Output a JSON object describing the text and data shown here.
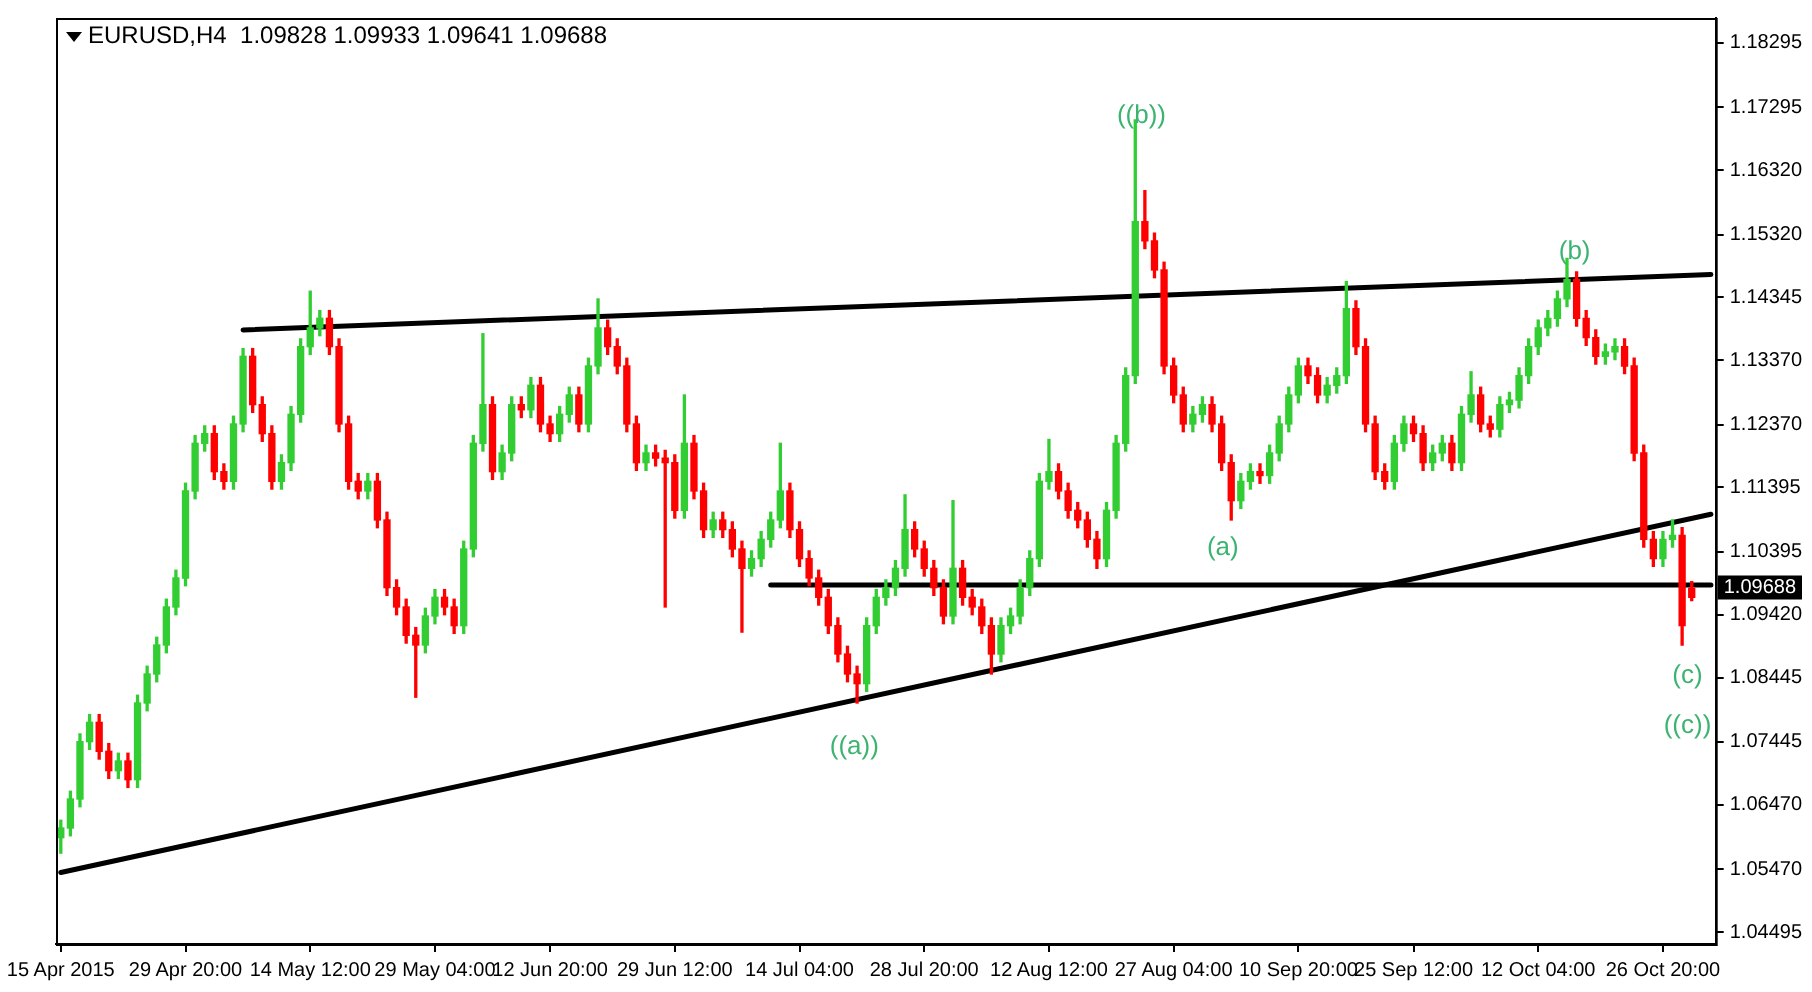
{
  "chart_data": {
    "type": "candlestick",
    "title": "EURUSD,H4  1.09828 1.09933 1.09641 1.09688",
    "categories": [
      "15 Apr 2015",
      null,
      null,
      null,
      null,
      null,
      null,
      null,
      null,
      null,
      null,
      null,
      null,
      "29 Apr 20:00",
      null,
      null,
      null,
      null,
      null,
      null,
      null,
      null,
      null,
      null,
      null,
      null,
      "14 May 12:00",
      null,
      null,
      null,
      null,
      null,
      null,
      null,
      null,
      null,
      null,
      null,
      null,
      "29 May 04:00",
      null,
      null,
      null,
      null,
      null,
      null,
      null,
      null,
      null,
      null,
      null,
      "12 Jun 20:00",
      null,
      null,
      null,
      null,
      null,
      null,
      null,
      null,
      null,
      null,
      null,
      null,
      "29 Jun 12:00",
      null,
      null,
      null,
      null,
      null,
      null,
      null,
      null,
      null,
      null,
      null,
      null,
      "14 Jul 04:00",
      null,
      null,
      null,
      null,
      null,
      null,
      null,
      null,
      null,
      null,
      null,
      null,
      "28 Jul 20:00",
      null,
      null,
      null,
      null,
      null,
      null,
      null,
      null,
      null,
      null,
      null,
      null,
      "12 Aug 12:00",
      null,
      null,
      null,
      null,
      null,
      null,
      null,
      null,
      null,
      null,
      null,
      null,
      "27 Aug 04:00",
      null,
      null,
      null,
      null,
      null,
      null,
      null,
      null,
      null,
      null,
      null,
      null,
      "10 Sep 20:00",
      null,
      null,
      null,
      null,
      null,
      null,
      null,
      null,
      null,
      null,
      null,
      "25 Sep 12:00",
      null,
      null,
      null,
      null,
      null,
      null,
      null,
      null,
      null,
      null,
      null,
      null,
      "12 Oct 04:00",
      null,
      null,
      null,
      null,
      null,
      null,
      null,
      null,
      null,
      null,
      null,
      null,
      "26 Oct 20:00",
      null,
      null,
      null,
      null,
      null
    ],
    "ohlc": [
      [
        1.0596,
        1.0623,
        1.0572,
        1.0611
      ],
      [
        1.0611,
        1.0668,
        1.0599,
        1.0656
      ],
      [
        1.0656,
        1.0757,
        1.0644,
        1.0745
      ],
      [
        1.0745,
        1.0787,
        1.0733,
        1.0775
      ],
      [
        1.0775,
        1.0787,
        1.0718,
        1.073
      ],
      [
        1.073,
        1.0742,
        1.0688,
        1.07
      ],
      [
        1.07,
        1.0727,
        1.0688,
        1.0715
      ],
      [
        1.0715,
        1.0727,
        1.0674,
        1.0686
      ],
      [
        1.0686,
        1.0817,
        1.0674,
        1.0805
      ],
      [
        1.0805,
        1.0862,
        1.0793,
        1.085
      ],
      [
        1.085,
        1.0907,
        1.0838,
        1.0895
      ],
      [
        1.0895,
        1.0966,
        1.0883,
        1.0954
      ],
      [
        1.0954,
        1.1011,
        1.0942,
        1.0999
      ],
      [
        1.0999,
        1.1146,
        1.0987,
        1.1134
      ],
      [
        1.1134,
        1.122,
        1.1122,
        1.1208
      ],
      [
        1.1208,
        1.1235,
        1.1196,
        1.1223
      ],
      [
        1.1223,
        1.1235,
        1.1152,
        1.1164
      ],
      [
        1.1164,
        1.1176,
        1.1137,
        1.1149
      ],
      [
        1.1149,
        1.125,
        1.1137,
        1.1238
      ],
      [
        1.1238,
        1.1355,
        1.1226,
        1.1343
      ],
      [
        1.1343,
        1.1355,
        1.1256,
        1.1268
      ],
      [
        1.1268,
        1.128,
        1.1211,
        1.1223
      ],
      [
        1.1223,
        1.1235,
        1.1137,
        1.1149
      ],
      [
        1.1149,
        1.119,
        1.1137,
        1.1178
      ],
      [
        1.1178,
        1.1265,
        1.1166,
        1.1253
      ],
      [
        1.1253,
        1.137,
        1.1241,
        1.1358
      ],
      [
        1.1358,
        1.1444,
        1.1346,
        1.1387
      ],
      [
        1.1387,
        1.1414,
        1.1375,
        1.1402
      ],
      [
        1.1402,
        1.1414,
        1.1346,
        1.1358
      ],
      [
        1.1358,
        1.137,
        1.1226,
        1.1238
      ],
      [
        1.1238,
        1.125,
        1.1137,
        1.1149
      ],
      [
        1.1149,
        1.1161,
        1.1122,
        1.1134
      ],
      [
        1.1134,
        1.1161,
        1.1122,
        1.1149
      ],
      [
        1.1149,
        1.1161,
        1.1077,
        1.1089
      ],
      [
        1.1089,
        1.1101,
        1.0972,
        1.0984
      ],
      [
        1.0984,
        1.0996,
        1.0942,
        1.0954
      ],
      [
        1.0954,
        1.0966,
        1.0898,
        1.091
      ],
      [
        1.091,
        1.0922,
        1.0814,
        1.0895
      ],
      [
        1.0895,
        1.0952,
        1.0883,
        1.094
      ],
      [
        1.094,
        1.0981,
        1.0928,
        1.0969
      ],
      [
        1.0969,
        1.0981,
        1.0942,
        1.0954
      ],
      [
        1.0954,
        1.0966,
        1.0913,
        1.0925
      ],
      [
        1.0925,
        1.1056,
        1.0913,
        1.1044
      ],
      [
        1.1044,
        1.122,
        1.1032,
        1.1208
      ],
      [
        1.1208,
        1.1378,
        1.1196,
        1.1268
      ],
      [
        1.1268,
        1.128,
        1.1152,
        1.1164
      ],
      [
        1.1164,
        1.1205,
        1.1152,
        1.1193
      ],
      [
        1.1193,
        1.128,
        1.1181,
        1.1268
      ],
      [
        1.1268,
        1.128,
        1.1248,
        1.126
      ],
      [
        1.126,
        1.131,
        1.1248,
        1.1298
      ],
      [
        1.1298,
        1.131,
        1.1226,
        1.1238
      ],
      [
        1.1238,
        1.125,
        1.1211,
        1.1223
      ],
      [
        1.1223,
        1.1265,
        1.1211,
        1.1253
      ],
      [
        1.1253,
        1.1295,
        1.1241,
        1.1283
      ],
      [
        1.1283,
        1.1295,
        1.1226,
        1.1238
      ],
      [
        1.1238,
        1.134,
        1.1226,
        1.1328
      ],
      [
        1.1328,
        1.1432,
        1.1316,
        1.1387
      ],
      [
        1.1387,
        1.1399,
        1.1346,
        1.1358
      ],
      [
        1.1358,
        1.137,
        1.1316,
        1.1328
      ],
      [
        1.1328,
        1.134,
        1.1226,
        1.1238
      ],
      [
        1.1238,
        1.125,
        1.1166,
        1.1178
      ],
      [
        1.1178,
        1.1205,
        1.1166,
        1.1193
      ],
      [
        1.1193,
        1.1205,
        1.1173,
        1.1185
      ],
      [
        1.1185,
        1.1197,
        1.0954,
        1.1178
      ],
      [
        1.1178,
        1.119,
        1.1092,
        1.1104
      ],
      [
        1.1104,
        1.1283,
        1.1092,
        1.1208
      ],
      [
        1.1208,
        1.122,
        1.1122,
        1.1134
      ],
      [
        1.1134,
        1.1146,
        1.1062,
        1.1074
      ],
      [
        1.1074,
        1.1101,
        1.1062,
        1.1089
      ],
      [
        1.1089,
        1.1101,
        1.1062,
        1.1074
      ],
      [
        1.1074,
        1.1086,
        1.1032,
        1.1044
      ],
      [
        1.1044,
        1.1056,
        1.0915,
        1.1014
      ],
      [
        1.1014,
        1.1041,
        1.1002,
        1.1029
      ],
      [
        1.1029,
        1.1071,
        1.1017,
        1.1059
      ],
      [
        1.1059,
        1.1101,
        1.1047,
        1.1089
      ],
      [
        1.1089,
        1.1208,
        1.1077,
        1.1134
      ],
      [
        1.1134,
        1.1146,
        1.1062,
        1.1074
      ],
      [
        1.1074,
        1.1086,
        1.1017,
        1.1029
      ],
      [
        1.1029,
        1.1041,
        1.0987,
        1.0999
      ],
      [
        1.0999,
        1.1011,
        1.0957,
        1.0969
      ],
      [
        1.0969,
        1.0981,
        1.0913,
        1.0925
      ],
      [
        1.0925,
        1.0937,
        1.0869,
        1.0881
      ],
      [
        1.0881,
        1.0893,
        1.0838,
        1.085
      ],
      [
        1.085,
        1.0862,
        1.0805,
        1.0835
      ],
      [
        1.0835,
        1.0937,
        1.0823,
        1.0925
      ],
      [
        1.0925,
        1.0981,
        1.0913,
        1.0969
      ],
      [
        1.0969,
        1.0996,
        1.0957,
        1.0984
      ],
      [
        1.0984,
        1.1026,
        1.0972,
        1.1014
      ],
      [
        1.1014,
        1.1128,
        1.1002,
        1.1074
      ],
      [
        1.1074,
        1.1086,
        1.1032,
        1.1044
      ],
      [
        1.1044,
        1.1056,
        1.1002,
        1.1014
      ],
      [
        1.1014,
        1.1026,
        1.0972,
        1.0984
      ],
      [
        1.0984,
        1.0996,
        1.0928,
        1.094
      ],
      [
        1.094,
        1.1119,
        1.0928,
        1.1014
      ],
      [
        1.1014,
        1.1026,
        1.0957,
        1.0969
      ],
      [
        1.0969,
        1.0981,
        1.0942,
        1.0954
      ],
      [
        1.0954,
        1.0966,
        1.0913,
        1.0925
      ],
      [
        1.0925,
        1.0937,
        1.085,
        1.0881
      ],
      [
        1.0881,
        1.0937,
        1.0869,
        1.0925
      ],
      [
        1.0925,
        1.0952,
        1.0913,
        1.094
      ],
      [
        1.094,
        1.0996,
        1.0928,
        1.0984
      ],
      [
        1.0984,
        1.1041,
        1.0972,
        1.1029
      ],
      [
        1.1029,
        1.1161,
        1.1017,
        1.1149
      ],
      [
        1.1149,
        1.1214,
        1.1137,
        1.1164
      ],
      [
        1.1164,
        1.1176,
        1.1122,
        1.1134
      ],
      [
        1.1134,
        1.1146,
        1.1092,
        1.1104
      ],
      [
        1.1104,
        1.1116,
        1.1077,
        1.1089
      ],
      [
        1.1089,
        1.1101,
        1.1047,
        1.1059
      ],
      [
        1.1059,
        1.1071,
        1.1014,
        1.1029
      ],
      [
        1.1029,
        1.1116,
        1.1017,
        1.1104
      ],
      [
        1.1104,
        1.122,
        1.1092,
        1.1208
      ],
      [
        1.1208,
        1.1325,
        1.1196,
        1.1313
      ],
      [
        1.1313,
        1.171,
        1.1301,
        1.1552
      ],
      [
        1.1552,
        1.16,
        1.151,
        1.1522
      ],
      [
        1.1522,
        1.1534,
        1.1465,
        1.1477
      ],
      [
        1.1477,
        1.1489,
        1.1316,
        1.1328
      ],
      [
        1.1328,
        1.134,
        1.1271,
        1.1283
      ],
      [
        1.1283,
        1.1295,
        1.1226,
        1.1238
      ],
      [
        1.1238,
        1.1265,
        1.1226,
        1.1253
      ],
      [
        1.1253,
        1.128,
        1.1241,
        1.1268
      ],
      [
        1.1268,
        1.128,
        1.1226,
        1.1238
      ],
      [
        1.1238,
        1.125,
        1.1166,
        1.1178
      ],
      [
        1.1178,
        1.119,
        1.1089,
        1.1119
      ],
      [
        1.1119,
        1.1161,
        1.1107,
        1.1149
      ],
      [
        1.1149,
        1.1176,
        1.1137,
        1.1164
      ],
      [
        1.1164,
        1.1176,
        1.1146,
        1.1158
      ],
      [
        1.1158,
        1.1205,
        1.1146,
        1.1193
      ],
      [
        1.1193,
        1.125,
        1.1181,
        1.1238
      ],
      [
        1.1238,
        1.1295,
        1.1226,
        1.1283
      ],
      [
        1.1283,
        1.134,
        1.1271,
        1.1328
      ],
      [
        1.1328,
        1.134,
        1.1301,
        1.1313
      ],
      [
        1.1313,
        1.1325,
        1.1271,
        1.1283
      ],
      [
        1.1283,
        1.131,
        1.1271,
        1.1298
      ],
      [
        1.1298,
        1.1325,
        1.1286,
        1.1313
      ],
      [
        1.1313,
        1.1459,
        1.1301,
        1.1417
      ],
      [
        1.1417,
        1.1429,
        1.1346,
        1.1358
      ],
      [
        1.1358,
        1.137,
        1.1226,
        1.1238
      ],
      [
        1.1238,
        1.125,
        1.1152,
        1.1164
      ],
      [
        1.1164,
        1.1176,
        1.1137,
        1.1149
      ],
      [
        1.1149,
        1.122,
        1.1137,
        1.1208
      ],
      [
        1.1208,
        1.125,
        1.1196,
        1.1238
      ],
      [
        1.1238,
        1.125,
        1.1211,
        1.1223
      ],
      [
        1.1223,
        1.1235,
        1.1166,
        1.1178
      ],
      [
        1.1178,
        1.1205,
        1.1166,
        1.1193
      ],
      [
        1.1193,
        1.122,
        1.1181,
        1.1208
      ],
      [
        1.1208,
        1.122,
        1.1166,
        1.1178
      ],
      [
        1.1178,
        1.1265,
        1.1166,
        1.1253
      ],
      [
        1.1253,
        1.1319,
        1.1241,
        1.1283
      ],
      [
        1.1283,
        1.1295,
        1.1226,
        1.1238
      ],
      [
        1.1238,
        1.125,
        1.1218,
        1.123
      ],
      [
        1.123,
        1.128,
        1.1218,
        1.1268
      ],
      [
        1.1268,
        1.1287,
        1.1256,
        1.1275
      ],
      [
        1.1275,
        1.1325,
        1.1263,
        1.1313
      ],
      [
        1.1313,
        1.137,
        1.1301,
        1.1358
      ],
      [
        1.1358,
        1.1399,
        1.1346,
        1.1387
      ],
      [
        1.1387,
        1.1414,
        1.1375,
        1.1402
      ],
      [
        1.1402,
        1.1444,
        1.139,
        1.1432
      ],
      [
        1.1432,
        1.1495,
        1.142,
        1.1462
      ],
      [
        1.1462,
        1.1474,
        1.139,
        1.1402
      ],
      [
        1.1402,
        1.1414,
        1.136,
        1.1372
      ],
      [
        1.1372,
        1.1384,
        1.1331,
        1.1343
      ],
      [
        1.1343,
        1.1362,
        1.1331,
        1.135
      ],
      [
        1.135,
        1.137,
        1.1338,
        1.1358
      ],
      [
        1.1358,
        1.137,
        1.1316,
        1.1328
      ],
      [
        1.1328,
        1.134,
        1.1181,
        1.1193
      ],
      [
        1.1193,
        1.1205,
        1.1047,
        1.1059
      ],
      [
        1.1059,
        1.1071,
        1.1017,
        1.1029
      ],
      [
        1.1029,
        1.1071,
        1.1017,
        1.1059
      ],
      [
        1.1059,
        1.1089,
        1.1047,
        1.1065
      ],
      [
        1.1065,
        1.1077,
        1.0895,
        1.0925
      ],
      [
        1.09828,
        1.09933,
        1.09641,
        1.09688
      ],
      null,
      null
    ],
    "series": [
      {
        "type": "line",
        "color": "#000000",
        "values": [
          null,
          null,
          null,
          null,
          null,
          null,
          null,
          null,
          null,
          null,
          null,
          null,
          null,
          null,
          null,
          null,
          null,
          null,
          null,
          1.1384,
          null,
          null,
          null,
          null,
          null,
          null,
          null,
          null,
          null,
          null,
          null,
          null,
          null,
          null,
          null,
          null,
          null,
          null,
          null,
          null,
          null,
          null,
          null,
          null,
          null,
          null,
          null,
          null,
          null,
          null,
          null,
          null,
          null,
          null,
          null,
          null,
          null,
          null,
          null,
          null,
          null,
          null,
          null,
          null,
          null,
          null,
          null,
          null,
          null,
          null,
          null,
          null,
          null,
          null,
          null,
          null,
          null,
          null,
          null,
          null,
          null,
          null,
          null,
          null,
          null,
          null,
          null,
          null,
          null,
          null,
          null,
          null,
          null,
          null,
          null,
          null,
          null,
          null,
          null,
          null,
          null,
          null,
          null,
          null,
          null,
          null,
          null,
          null,
          null,
          null,
          null,
          null,
          null,
          null,
          null,
          null,
          null,
          null,
          null,
          null,
          null,
          null,
          null,
          null,
          null,
          null,
          null,
          null,
          null,
          null,
          null,
          null,
          null,
          null,
          null,
          null,
          null,
          null,
          null,
          null,
          null,
          null,
          null,
          null,
          null,
          null,
          null,
          null,
          null,
          null,
          null,
          null,
          null,
          null,
          null,
          null,
          null,
          null,
          null,
          null,
          null,
          null,
          null,
          null,
          null,
          null,
          null,
          null,
          null,
          null,
          null,
          null,
          1.147
        ]
      },
      {
        "type": "line",
        "color": "#000000",
        "values": [
          1.0542,
          null,
          null,
          null,
          null,
          null,
          null,
          null,
          null,
          null,
          null,
          null,
          null,
          null,
          null,
          null,
          null,
          null,
          null,
          null,
          null,
          null,
          null,
          null,
          null,
          null,
          null,
          null,
          null,
          null,
          null,
          null,
          null,
          null,
          null,
          null,
          null,
          null,
          null,
          null,
          null,
          null,
          null,
          null,
          null,
          null,
          null,
          null,
          null,
          null,
          null,
          null,
          null,
          null,
          null,
          null,
          null,
          null,
          null,
          null,
          null,
          null,
          null,
          null,
          null,
          null,
          null,
          null,
          null,
          null,
          null,
          null,
          null,
          null,
          null,
          null,
          null,
          null,
          null,
          null,
          null,
          null,
          null,
          null,
          null,
          null,
          null,
          null,
          null,
          null,
          null,
          null,
          null,
          null,
          null,
          null,
          null,
          null,
          null,
          null,
          null,
          null,
          null,
          null,
          null,
          null,
          null,
          null,
          null,
          null,
          null,
          null,
          null,
          null,
          null,
          null,
          null,
          null,
          null,
          null,
          null,
          null,
          null,
          null,
          null,
          null,
          null,
          null,
          null,
          null,
          null,
          null,
          null,
          null,
          null,
          null,
          null,
          null,
          null,
          null,
          null,
          null,
          null,
          null,
          null,
          null,
          null,
          null,
          null,
          null,
          null,
          null,
          null,
          null,
          null,
          null,
          null,
          null,
          null,
          null,
          null,
          null,
          null,
          null,
          null,
          null,
          null,
          null,
          null,
          null,
          null,
          null,
          1.1098
        ]
      },
      {
        "type": "line",
        "color": "#000000",
        "values": [
          null,
          null,
          null,
          null,
          null,
          null,
          null,
          null,
          null,
          null,
          null,
          null,
          null,
          null,
          null,
          null,
          null,
          null,
          null,
          null,
          null,
          null,
          null,
          null,
          null,
          null,
          null,
          null,
          null,
          null,
          null,
          null,
          null,
          null,
          null,
          null,
          null,
          null,
          null,
          null,
          null,
          null,
          null,
          null,
          null,
          null,
          null,
          null,
          null,
          null,
          null,
          null,
          null,
          null,
          null,
          null,
          null,
          null,
          null,
          null,
          null,
          null,
          null,
          null,
          null,
          null,
          null,
          null,
          null,
          null,
          null,
          null,
          null,
          null,
          1.0988,
          null,
          null,
          null,
          null,
          null,
          null,
          null,
          null,
          null,
          null,
          null,
          null,
          null,
          null,
          null,
          null,
          null,
          null,
          null,
          null,
          null,
          null,
          null,
          null,
          null,
          null,
          null,
          null,
          null,
          null,
          null,
          null,
          null,
          null,
          null,
          null,
          null,
          null,
          null,
          null,
          null,
          null,
          null,
          null,
          null,
          null,
          null,
          null,
          null,
          null,
          null,
          null,
          null,
          null,
          null,
          null,
          null,
          null,
          null,
          null,
          null,
          null,
          null,
          null,
          null,
          null,
          null,
          null,
          null,
          null,
          null,
          null,
          null,
          null,
          null,
          null,
          null,
          null,
          null,
          null,
          null,
          null,
          null,
          null,
          null,
          null,
          null,
          null,
          null,
          null,
          null,
          null,
          null,
          null,
          null,
          null,
          null,
          1.0988
        ]
      }
    ],
    "ylim": [
      1.0431,
      1.1868
    ],
    "yticks": [
      {
        "value": 1.18295,
        "label": "1.18295"
      },
      {
        "value": 1.17295,
        "label": "1.17295"
      },
      {
        "value": 1.1632,
        "label": "1.16320"
      },
      {
        "value": 1.1532,
        "label": "1.15320"
      },
      {
        "value": 1.14345,
        "label": "1.14345"
      },
      {
        "value": 1.1337,
        "label": "1.13370"
      },
      {
        "value": 1.1237,
        "label": "1.12370"
      },
      {
        "value": 1.11395,
        "label": "1.11395"
      },
      {
        "value": 1.10395,
        "label": "1.10395"
      },
      {
        "value": 1.0942,
        "label": "1.09420"
      },
      {
        "value": 1.08445,
        "label": "1.08445"
      },
      {
        "value": 1.07445,
        "label": "1.07445"
      },
      {
        "value": 1.0647,
        "label": "1.06470"
      },
      {
        "value": 1.0547,
        "label": "1.05470"
      },
      {
        "value": 1.04495,
        "label": "1.04495"
      }
    ],
    "annotations": [
      "((b))",
      "(b)",
      "(a)",
      "((a))",
      "(c)",
      "((c))",
      "1.09688"
    ],
    "legend": false
  }
}
